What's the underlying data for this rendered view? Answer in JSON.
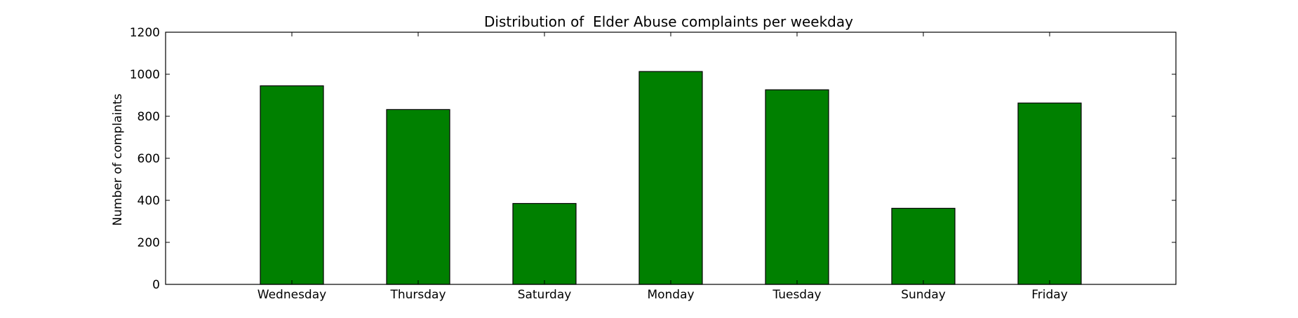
{
  "chart_data": {
    "type": "bar",
    "title": "Distribution of  Elder Abuse complaints per weekday",
    "xlabel": "",
    "ylabel": "Number of complaints",
    "categories": [
      "Wednesday",
      "Thursday",
      "Saturday",
      "Monday",
      "Tuesday",
      "Sunday",
      "Friday"
    ],
    "values": [
      945,
      832,
      385,
      1013,
      926,
      362,
      863
    ],
    "ylim": [
      0,
      1200
    ],
    "yticks": [
      0,
      200,
      400,
      600,
      800,
      1000,
      1200
    ],
    "grid": false,
    "legend": "none",
    "colors": {
      "bar": "#008000",
      "bar_edge": "#000000",
      "axes": "#000000"
    }
  }
}
